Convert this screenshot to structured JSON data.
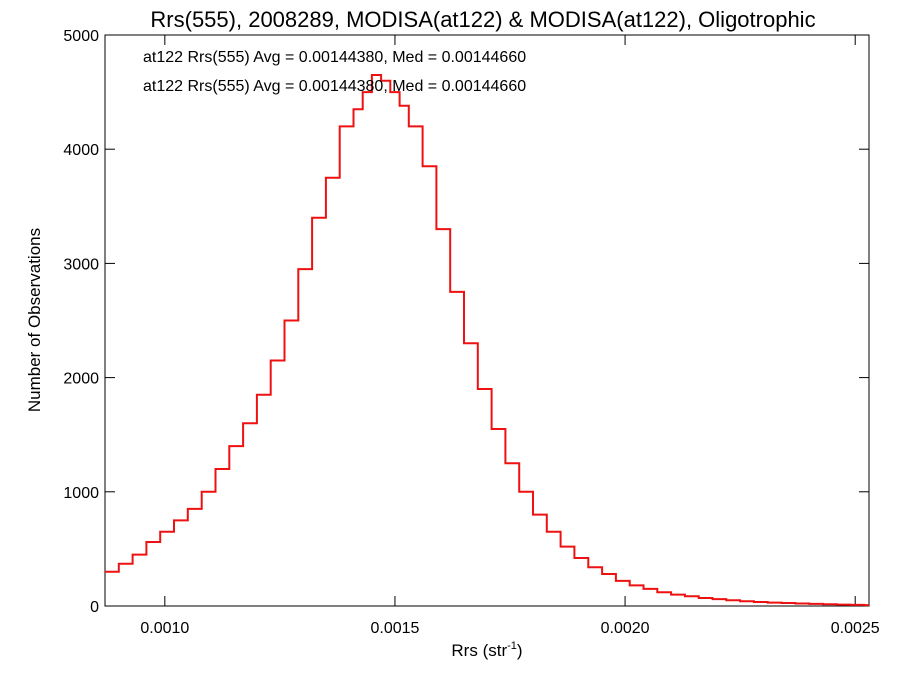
{
  "chart_data": {
    "type": "line",
    "title": "Rrs(555), 2008289, MODISA(at122) & MODISA(at122), Oligotrophic",
    "xlabel": "Rrs (str",
    "xlabel_superscript": "-1",
    "xlabel_suffix": ")",
    "ylabel": "Number of Observations",
    "xlim": [
      0.00087,
      0.00253
    ],
    "ylim": [
      0,
      5000
    ],
    "xticks": [
      0.001,
      0.0015,
      0.002,
      0.0025
    ],
    "xtick_labels": [
      "0.0010",
      "0.0015",
      "0.0020",
      "0.0025"
    ],
    "yticks": [
      0,
      1000,
      2000,
      3000,
      4000,
      5000
    ],
    "ytick_labels": [
      "0",
      "1000",
      "2000",
      "3000",
      "4000",
      "5000"
    ],
    "grid": false,
    "legend_position": "top-left",
    "legend": [
      {
        "text": "at122 Rrs(555) Avg = 0.00144380, Med = 0.00144660",
        "color": "#000000"
      },
      {
        "text": "at122 Rrs(555) Avg = 0.00144380, Med = 0.00144660",
        "color": "#ee1111"
      }
    ],
    "series": [
      {
        "color": "#ee1111",
        "style": "step",
        "x": [
          0.00087,
          0.0009,
          0.00093,
          0.00096,
          0.00099,
          0.00102,
          0.00105,
          0.00108,
          0.00111,
          0.00114,
          0.00117,
          0.0012,
          0.00123,
          0.00126,
          0.00129,
          0.00132,
          0.00135,
          0.00138,
          0.00141,
          0.00143,
          0.00145,
          0.00147,
          0.00149,
          0.00151,
          0.00153,
          0.00156,
          0.00159,
          0.00162,
          0.00165,
          0.00168,
          0.00171,
          0.00174,
          0.00177,
          0.0018,
          0.00183,
          0.00186,
          0.00189,
          0.00192,
          0.00195,
          0.00198,
          0.00201,
          0.00204,
          0.00207,
          0.0021,
          0.00213,
          0.00216,
          0.00219,
          0.00222,
          0.00225,
          0.00228,
          0.00231,
          0.00234,
          0.00237,
          0.0024,
          0.00243,
          0.00246,
          0.00249,
          0.00252
        ],
        "y": [
          300,
          370,
          450,
          560,
          650,
          750,
          850,
          1000,
          1200,
          1400,
          1600,
          1850,
          2150,
          2500,
          2950,
          3400,
          3750,
          4200,
          4350,
          4500,
          4650,
          4600,
          4500,
          4380,
          4200,
          3850,
          3300,
          2750,
          2300,
          1900,
          1550,
          1250,
          1000,
          800,
          650,
          520,
          420,
          340,
          280,
          220,
          180,
          150,
          120,
          100,
          85,
          70,
          60,
          50,
          42,
          35,
          30,
          26,
          22,
          18,
          15,
          12,
          10,
          8
        ]
      }
    ]
  }
}
